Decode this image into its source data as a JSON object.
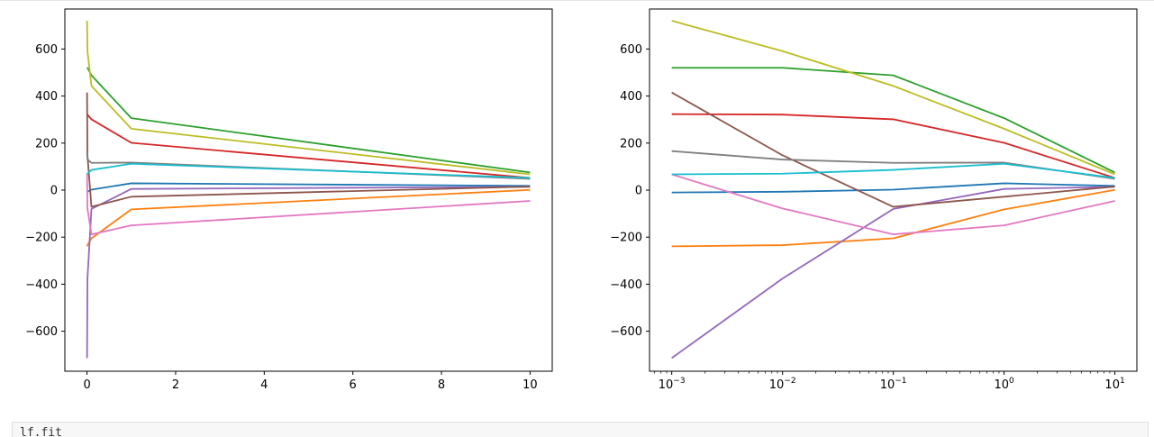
{
  "chart_data": [
    {
      "type": "line",
      "title": "",
      "xlabel": "",
      "ylabel": "",
      "xscale": "linear",
      "xlim": [
        -0.5,
        10.5
      ],
      "ylim": [
        -770,
        770
      ],
      "xticks": [
        0,
        2,
        4,
        6,
        8,
        10
      ],
      "yticks": [
        -600,
        -400,
        -200,
        0,
        200,
        400,
        600
      ],
      "grid": false,
      "legend": "none",
      "x": [
        0.001,
        0.01,
        0.1,
        1,
        10
      ],
      "series": [
        {
          "color": "#1f77b4",
          "values": [
            -10,
            -7,
            2,
            29,
            18
          ]
        },
        {
          "color": "#ff7f0e",
          "values": [
            -239,
            -234,
            -205,
            -82,
            1
          ]
        },
        {
          "color": "#2ca02c",
          "values": [
            520,
            520,
            488,
            306,
            75
          ]
        },
        {
          "color": "#d62728",
          "values": [
            323,
            321,
            301,
            201,
            52
          ]
        },
        {
          "color": "#9467bd",
          "values": [
            -714,
            -376,
            -80,
            5,
            14
          ]
        },
        {
          "color": "#8c564b",
          "values": [
            415,
            148,
            -71,
            -28,
            15
          ]
        },
        {
          "color": "#e377c2",
          "values": [
            67,
            -78,
            -188,
            -150,
            -46
          ]
        },
        {
          "color": "#7f7f7f",
          "values": [
            166,
            130,
            116,
            117,
            48
          ]
        },
        {
          "color": "#bcbd22",
          "values": [
            720,
            591,
            443,
            261,
            67
          ]
        },
        {
          "color": "#17becf",
          "values": [
            67,
            70,
            86,
            112,
            52
          ]
        }
      ]
    },
    {
      "type": "line",
      "title": "",
      "xlabel": "",
      "ylabel": "",
      "xscale": "log",
      "xlim": [
        0.00063,
        15.8
      ],
      "ylim": [
        -770,
        770
      ],
      "xticks": [
        0.001,
        0.01,
        0.1,
        1,
        10
      ],
      "xtick_labels": [
        {
          "base": "10",
          "exp": "−3"
        },
        {
          "base": "10",
          "exp": "−2"
        },
        {
          "base": "10",
          "exp": "−1"
        },
        {
          "base": "10",
          "exp": "0"
        },
        {
          "base": "10",
          "exp": "1"
        }
      ],
      "yticks": [
        -600,
        -400,
        -200,
        0,
        200,
        400,
        600
      ],
      "grid": false,
      "legend": "none",
      "x": [
        0.001,
        0.01,
        0.1,
        1,
        10
      ],
      "series": [
        {
          "color": "#1f77b4",
          "values": [
            -10,
            -7,
            2,
            29,
            18
          ]
        },
        {
          "color": "#ff7f0e",
          "values": [
            -239,
            -234,
            -205,
            -82,
            1
          ]
        },
        {
          "color": "#2ca02c",
          "values": [
            520,
            520,
            488,
            306,
            75
          ]
        },
        {
          "color": "#d62728",
          "values": [
            323,
            321,
            301,
            201,
            52
          ]
        },
        {
          "color": "#9467bd",
          "values": [
            -714,
            -376,
            -80,
            5,
            14
          ]
        },
        {
          "color": "#8c564b",
          "values": [
            415,
            148,
            -71,
            -28,
            15
          ]
        },
        {
          "color": "#e377c2",
          "values": [
            67,
            -78,
            -188,
            -150,
            -46
          ]
        },
        {
          "color": "#7f7f7f",
          "values": [
            166,
            130,
            116,
            117,
            48
          ]
        },
        {
          "color": "#bcbd22",
          "values": [
            720,
            591,
            443,
            261,
            67
          ]
        },
        {
          "color": "#17becf",
          "values": [
            67,
            70,
            86,
            112,
            52
          ]
        }
      ]
    }
  ],
  "code_cell": {
    "text": "lf.fit"
  }
}
